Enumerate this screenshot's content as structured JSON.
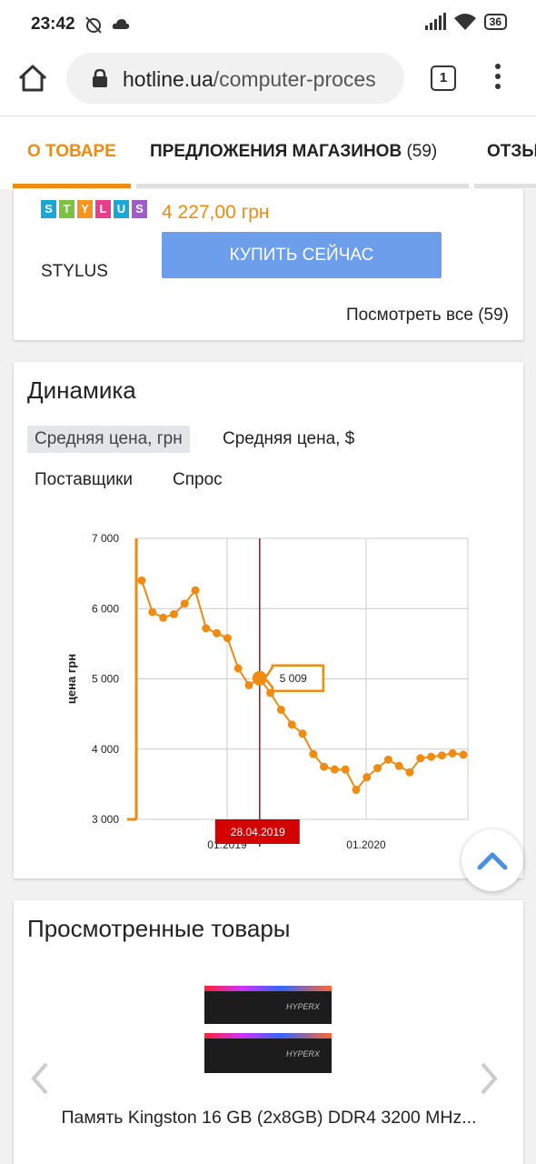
{
  "status_bar": {
    "time": "23:42",
    "battery": "36"
  },
  "browser": {
    "url_domain": "hotline.ua",
    "url_path": "/computer-proces",
    "tab_count": "1"
  },
  "page_tabs": [
    {
      "label": "О ТОВАРЕ",
      "count": ""
    },
    {
      "label": "ПРЕДЛОЖЕНИЯ МАГАЗИНОВ",
      "count": "(59)"
    },
    {
      "label": "ОТЗЫ",
      "count": ""
    }
  ],
  "offer": {
    "logo_letters": [
      "S",
      "T",
      "Y",
      "L",
      "U",
      "S"
    ],
    "shop_name": "STYLUS",
    "price": "4 227,00 грн",
    "buy_label": "КУПИТЬ СЕЙЧАС",
    "see_all": "Посмотреть все (59)"
  },
  "dynamics": {
    "title": "Динамика",
    "chips": [
      "Средняя цена, грн",
      "Средняя цена, $",
      "Поставщики",
      "Спрос"
    ]
  },
  "chart_data": {
    "type": "line",
    "ylabel": "цена грн",
    "xlabel": "",
    "ylim": [
      3000,
      7000
    ],
    "y_ticks": [
      "7 000",
      "6 000",
      "5 000",
      "4 000",
      "3 000"
    ],
    "x_ticks": [
      "01.2019",
      "01.2020"
    ],
    "series": [
      {
        "values": [
          6400,
          5950,
          5870,
          5920,
          6070,
          6260,
          5720,
          5650,
          5580,
          5150,
          4910,
          5009,
          4800,
          4560,
          4350,
          4220,
          3930,
          3750,
          3710,
          3710,
          3420,
          3600,
          3730,
          3850,
          3760,
          3670,
          3870,
          3890,
          3910,
          3940,
          3920
        ]
      }
    ],
    "highlight": {
      "date": "28.04.2019",
      "value": "5 009",
      "index": 11
    },
    "color": "#f08b12"
  },
  "viewed": {
    "title": "Просмотренные товары",
    "product_name": "Память Kingston 16 GB (2x8GB) DDR4 3200 MHz...",
    "product_brand": "HYPERX"
  }
}
